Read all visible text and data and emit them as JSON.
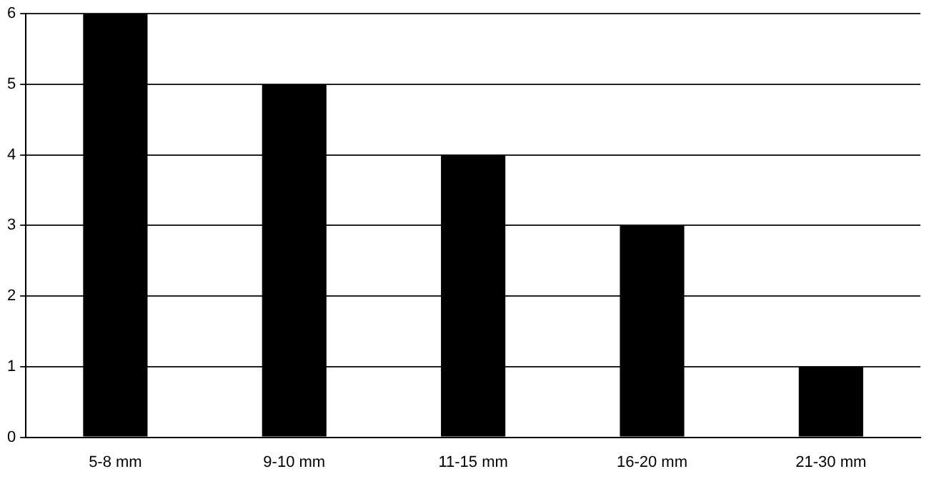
{
  "chart_data": {
    "type": "bar",
    "categories": [
      "5-8 mm",
      "9-10 mm",
      "11-15 mm",
      "16-20 mm",
      "21-30 mm"
    ],
    "values": [
      6,
      5,
      4,
      3,
      1
    ],
    "color": "#000000",
    "ylim": [
      0,
      6
    ],
    "yticks": [
      0,
      1,
      2,
      3,
      4,
      5,
      6
    ],
    "grid": "y",
    "legend": false
  }
}
